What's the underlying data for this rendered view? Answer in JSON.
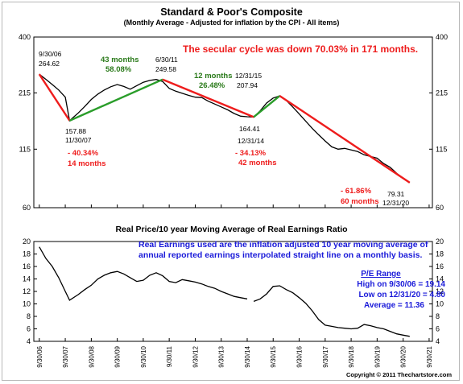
{
  "chart_data": [
    {
      "type": "line",
      "title": "Standard & Poor's Composite",
      "subtitle": "(Monthly Average - Adjusted for inflation by the CPI - All items)",
      "y_scale": "log",
      "ylim": [
        60,
        400
      ],
      "y_ticks": [
        "400",
        "215",
        "115",
        "60"
      ],
      "headline": "The secular cycle was down 70.03% in 171 months.",
      "series": [
        {
          "x": [
            "2006-09-30",
            "2006-12-31",
            "2007-03-31",
            "2007-06-30",
            "2007-09-30",
            "2007-11-30",
            "2008-03-31",
            "2008-06-30",
            "2008-09-30",
            "2008-12-31",
            "2009-03-31",
            "2009-06-30",
            "2009-09-30",
            "2009-12-31",
            "2010-03-31",
            "2010-06-30",
            "2010-09-30",
            "2010-12-31",
            "2011-03-31",
            "2011-06-30",
            "2011-09-30",
            "2011-12-31",
            "2012-03-31",
            "2012-06-30",
            "2012-09-30",
            "2012-12-31",
            "2013-03-31",
            "2013-06-30",
            "2013-09-30",
            "2013-12-31",
            "2014-03-31",
            "2014-06-30",
            "2014-09-30",
            "2014-12-31",
            "2015-03-31",
            "2015-06-30",
            "2015-09-30",
            "2015-12-31",
            "2016-03-31",
            "2016-06-30",
            "2016-09-30",
            "2016-12-31",
            "2017-03-31",
            "2017-06-30",
            "2017-09-30",
            "2017-12-31",
            "2018-03-31",
            "2018-06-30",
            "2018-09-30",
            "2018-12-31",
            "2019-03-31",
            "2019-06-30",
            "2019-09-30",
            "2019-12-31",
            "2020-03-31",
            "2020-06-30",
            "2020-09-30",
            "2020-12-31"
          ],
          "values": [
            264.62,
            250,
            236,
            222,
            205,
            157.88,
            172,
            185,
            200,
            212,
            222,
            230,
            236,
            231,
            224,
            233,
            242,
            247,
            249.58,
            244,
            226,
            219,
            214,
            209,
            205,
            204,
            196,
            190,
            184,
            178,
            171,
            166,
            165,
            164.41,
            176,
            192,
            203,
            207.94,
            198,
            184,
            170,
            157,
            145,
            135,
            126,
            118,
            115,
            116,
            114,
            112,
            108,
            106,
            104,
            98,
            94,
            88,
            83,
            79.31
          ]
        }
      ],
      "annotations": [
        {
          "date": "9/30/06",
          "value": "264.62"
        },
        {
          "date": "11/30/07",
          "value": "157.88",
          "change": "- 40.34%",
          "duration": "14 months"
        },
        {
          "date": "6/30/11",
          "value": "249.58",
          "change": "58.08%",
          "duration": "43 months"
        },
        {
          "date": "12/31/14",
          "value": "164.41",
          "change": "- 34.13%",
          "duration": "42 months"
        },
        {
          "date": "12/31/15",
          "value": "207.94",
          "change": "26.48%",
          "duration": "12 months"
        },
        {
          "date": "12/31/20",
          "value": "79.31",
          "change": "- 61.86%",
          "duration": "60 months"
        }
      ]
    },
    {
      "type": "line",
      "title": "Real Price/10 year Moving Average of Real Earnings Ratio",
      "ylim": [
        4,
        20
      ],
      "y_ticks": [
        "20",
        "18",
        "16",
        "14",
        "12",
        "10",
        "8",
        "6",
        "4"
      ],
      "x_ticks": [
        "9/30/06",
        "9/30/07",
        "9/30/08",
        "9/30/09",
        "9/30/10",
        "9/30/11",
        "9/30/12",
        "9/30/13",
        "9/30/14",
        "9/30/15",
        "9/30/16",
        "9/30/17",
        "9/30/18",
        "9/30/19",
        "9/30/20",
        "9/30/21"
      ],
      "note": "Real Earnings used are the inflation adjusted 10 year moving average of annual reported earnings interpolated straight line on a monthly basis.",
      "pe_range": {
        "title": "P/E Range",
        "high": "High on 9/30/06 = 19.14",
        "low": "Low on 12/31/20 = 4.80",
        "average": "Average = 11.36"
      },
      "series": [
        {
          "segments": [
            {
              "x": [
                "2006-09-30",
                "2006-12-31",
                "2007-03-31",
                "2007-06-30",
                "2007-09-30",
                "2007-11-30",
                "2008-03-31",
                "2008-06-30",
                "2008-09-30",
                "2008-12-31",
                "2009-03-31",
                "2009-06-30",
                "2009-09-30",
                "2009-12-31",
                "2010-03-31",
                "2010-06-30",
                "2010-09-30",
                "2010-12-31",
                "2011-03-31",
                "2011-06-30",
                "2011-09-30",
                "2011-12-31",
                "2012-03-31",
                "2012-06-30",
                "2012-09-30",
                "2012-12-31",
                "2013-03-31",
                "2013-06-30",
                "2013-09-30",
                "2013-12-31",
                "2014-03-31",
                "2014-06-30",
                "2014-09-30"
              ],
              "values": [
                19.14,
                17.3,
                16.0,
                14.2,
                12.0,
                10.6,
                11.5,
                12.3,
                13.0,
                14.0,
                14.6,
                15.0,
                15.2,
                14.8,
                14.2,
                13.6,
                13.8,
                14.6,
                15.0,
                14.5,
                13.6,
                13.4,
                13.9,
                13.7,
                13.5,
                13.2,
                12.8,
                12.5,
                12.0,
                11.6,
                11.2,
                11.0,
                10.8
              ]
            },
            {
              "x": [
                "2014-12-31",
                "2015-03-31",
                "2015-06-30",
                "2015-09-30",
                "2015-12-31",
                "2016-03-31",
                "2016-06-30",
                "2016-09-30",
                "2016-12-31",
                "2017-03-31",
                "2017-06-30",
                "2017-09-30",
                "2017-12-31",
                "2018-03-31",
                "2018-06-30",
                "2018-09-30",
                "2018-12-31",
                "2019-03-31",
                "2019-06-30",
                "2019-09-30",
                "2019-12-31",
                "2020-03-31",
                "2020-06-30",
                "2020-09-30",
                "2020-12-31"
              ],
              "values": [
                10.4,
                10.8,
                11.6,
                12.8,
                12.9,
                12.3,
                11.8,
                11.0,
                10.1,
                8.9,
                7.5,
                6.6,
                6.4,
                6.2,
                6.1,
                6.0,
                6.1,
                6.7,
                6.5,
                6.2,
                6.0,
                5.6,
                5.2,
                5.0,
                4.8
              ]
            }
          ]
        }
      ]
    }
  ],
  "copyright": "Copyright © 2011 Thechartstore.com"
}
